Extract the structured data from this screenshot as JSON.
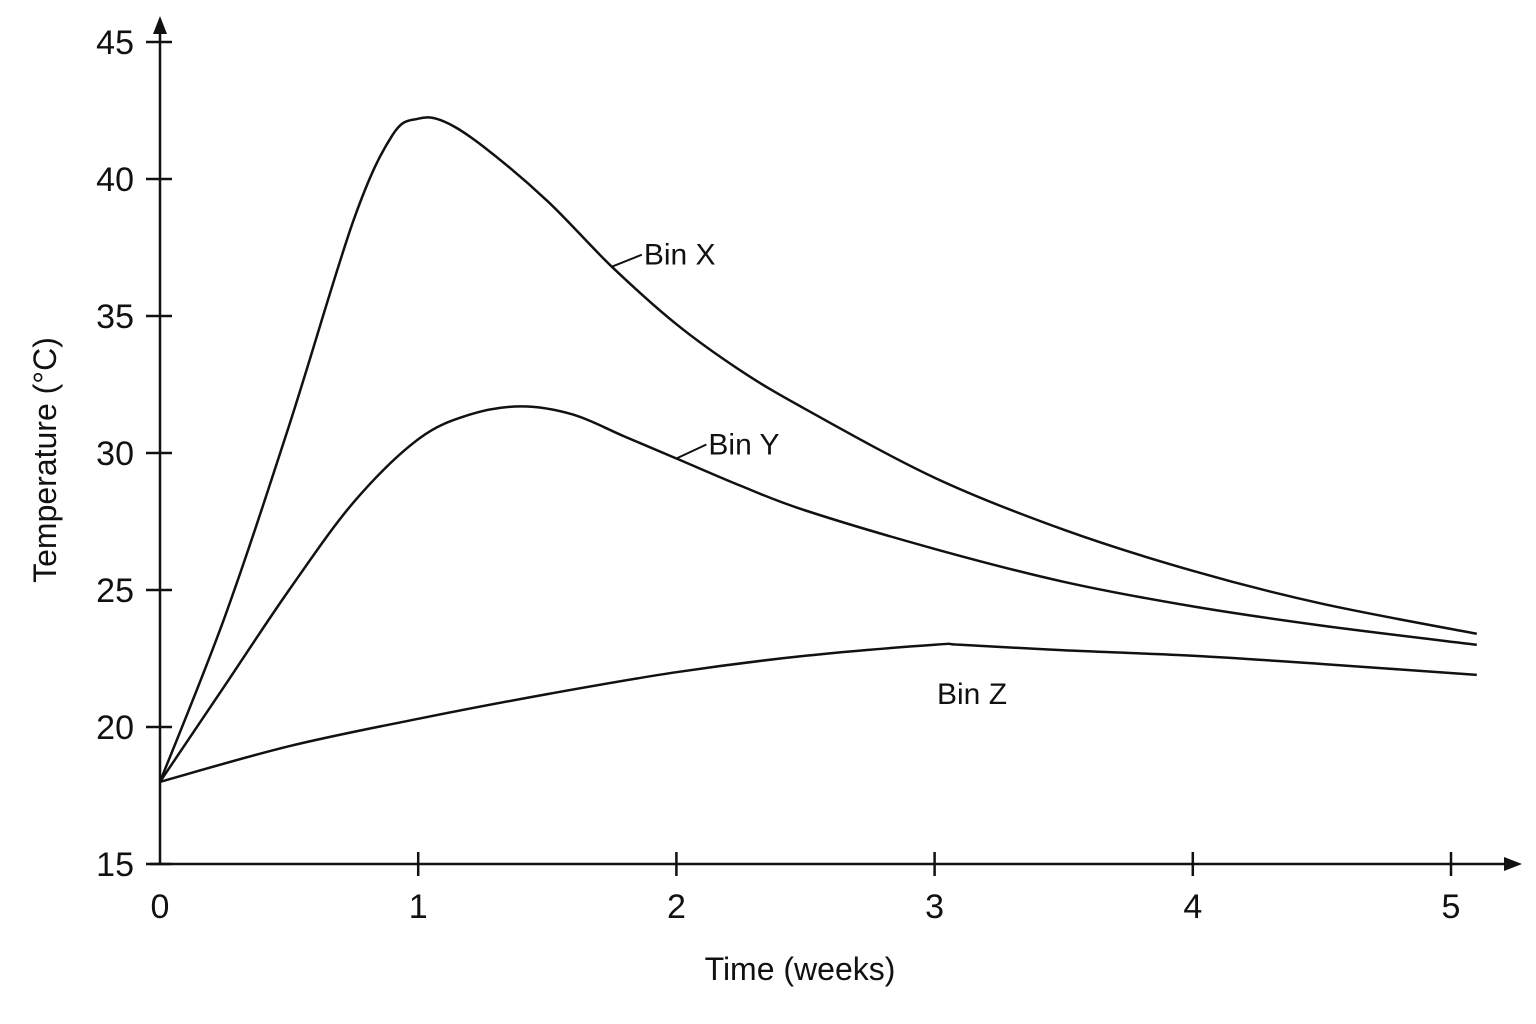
{
  "chart_data": {
    "type": "line",
    "xlabel": "Time (weeks)",
    "ylabel": "Temperature (°C)",
    "xlim": [
      0,
      5.1
    ],
    "ylim": [
      15,
      45
    ],
    "xticks": [
      "0",
      "1",
      "2",
      "3",
      "4",
      "5"
    ],
    "yticks": [
      "15",
      "20",
      "25",
      "30",
      "35",
      "40",
      "45"
    ],
    "grid": false,
    "series": [
      {
        "name": "Bin X",
        "x": [
          0,
          0.25,
          0.5,
          0.75,
          0.9,
          1.0,
          1.1,
          1.25,
          1.5,
          1.75,
          2.0,
          2.25,
          2.5,
          3.0,
          3.5,
          4.0,
          4.5,
          5.1
        ],
        "y": [
          18,
          24,
          31,
          38.5,
          41.6,
          42.2,
          42.1,
          41.2,
          39.2,
          36.8,
          34.7,
          33.0,
          31.6,
          29.1,
          27.2,
          25.7,
          24.5,
          23.4
        ]
      },
      {
        "name": "Bin Y",
        "x": [
          0,
          0.25,
          0.5,
          0.75,
          1.0,
          1.2,
          1.4,
          1.6,
          1.8,
          2.0,
          2.25,
          2.5,
          3.0,
          3.5,
          4.0,
          4.5,
          5.1
        ],
        "y": [
          18,
          21.5,
          25.0,
          28.2,
          30.5,
          31.4,
          31.7,
          31.4,
          30.6,
          29.8,
          28.8,
          27.9,
          26.5,
          25.3,
          24.4,
          23.7,
          23.0
        ]
      },
      {
        "name": "Bin Z",
        "x": [
          0,
          0.5,
          1.0,
          1.5,
          2.0,
          2.5,
          3.0,
          3.1,
          3.5,
          4.0,
          4.5,
          5.1
        ],
        "y": [
          18,
          19.3,
          20.3,
          21.2,
          22.0,
          22.6,
          23.0,
          23.0,
          22.8,
          22.6,
          22.3,
          21.9
        ]
      }
    ]
  }
}
